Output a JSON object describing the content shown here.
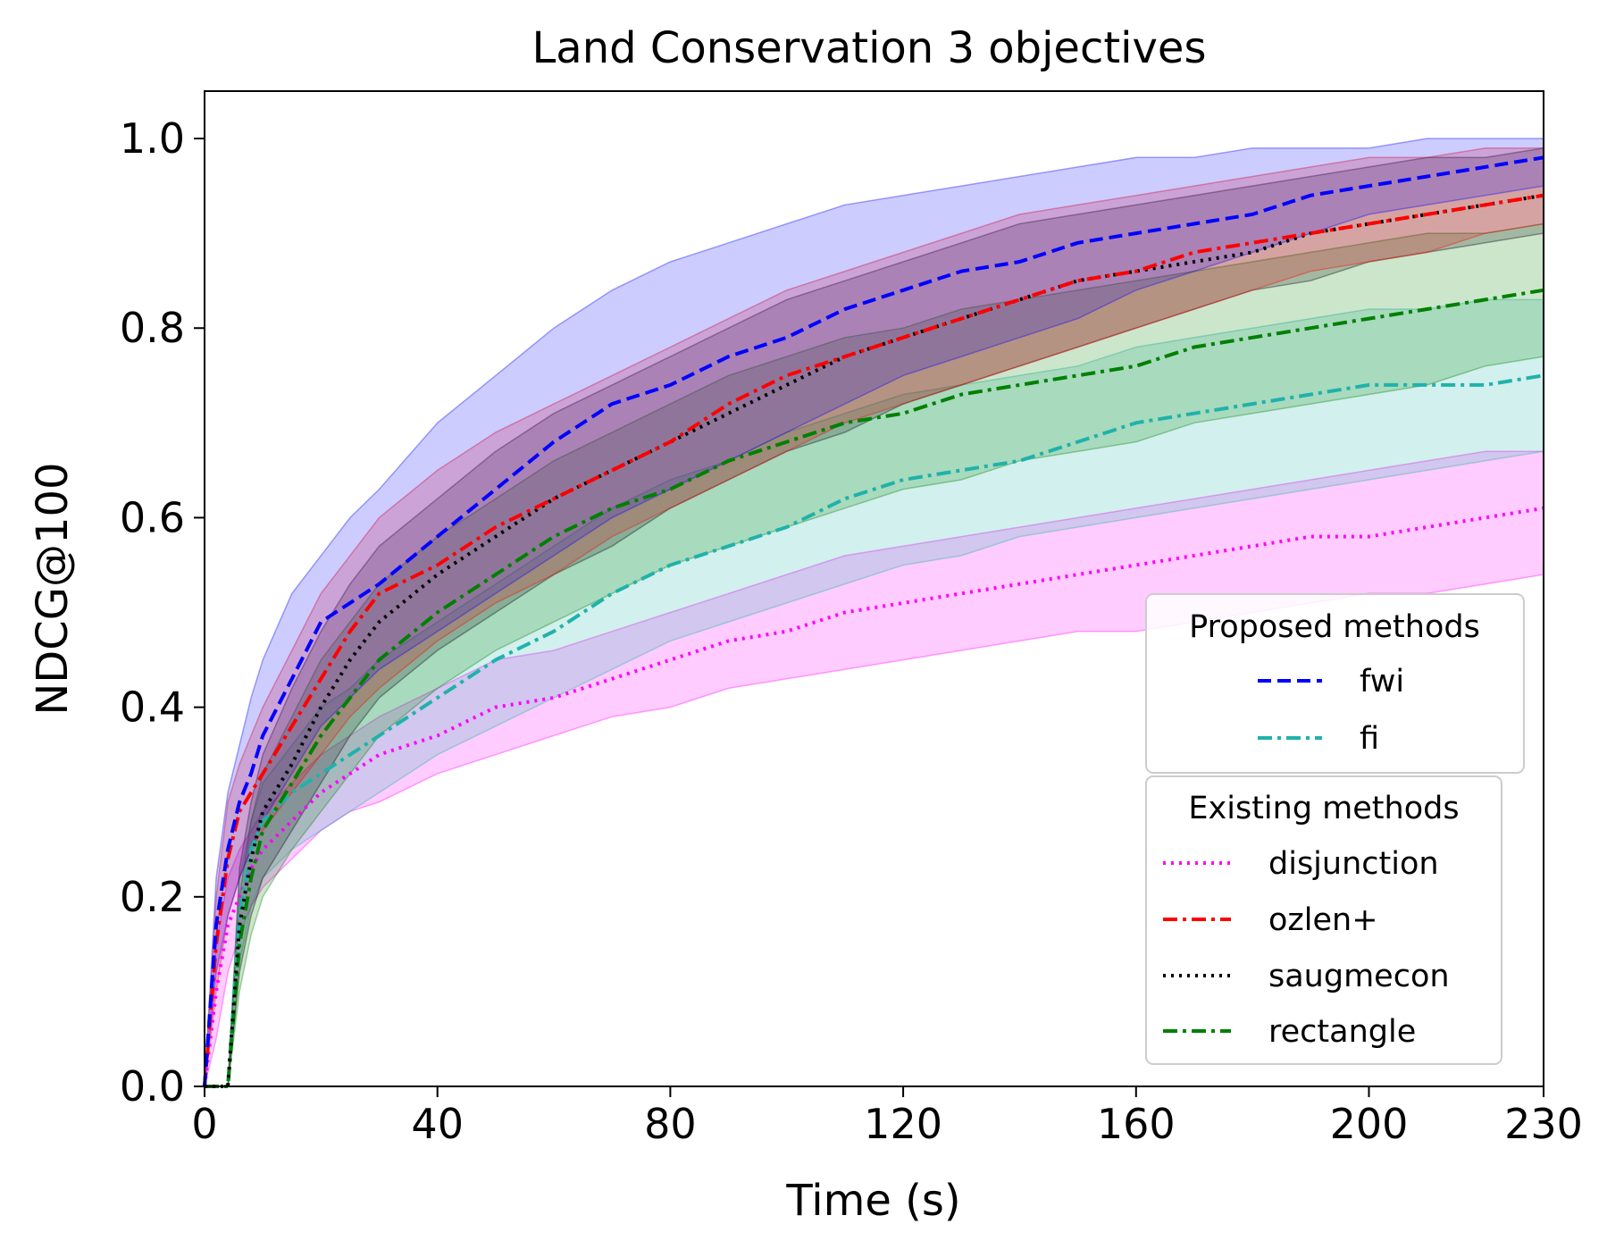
{
  "chart_data": {
    "type": "line",
    "title": "Land Conservation 3 objectives",
    "xlabel": "Time (s)",
    "ylabel": "NDCG@100",
    "xlim": [
      0,
      230
    ],
    "ylim": [
      0,
      1.05
    ],
    "xticks": [
      0,
      40,
      80,
      120,
      160,
      200,
      230
    ],
    "yticks": [
      0.0,
      0.2,
      0.4,
      0.6,
      0.8,
      1.0
    ],
    "xtick_labels": [
      "0",
      "40",
      "80",
      "120",
      "160",
      "200",
      "230"
    ],
    "ytick_labels": [
      "0.0",
      "0.2",
      "0.4",
      "0.6",
      "0.8",
      "1.0"
    ],
    "grid": false,
    "x": [
      0,
      2,
      4,
      6,
      8,
      10,
      15,
      20,
      25,
      30,
      40,
      50,
      60,
      70,
      80,
      90,
      100,
      110,
      120,
      130,
      140,
      150,
      160,
      170,
      180,
      190,
      200,
      210,
      220,
      230
    ],
    "series": [
      {
        "name": "disjunction",
        "group": "existing",
        "color": "#ff00ff",
        "style": "dotted",
        "mean": [
          0.0,
          0.1,
          0.17,
          0.2,
          0.23,
          0.25,
          0.28,
          0.31,
          0.33,
          0.35,
          0.37,
          0.4,
          0.41,
          0.43,
          0.45,
          0.47,
          0.48,
          0.5,
          0.51,
          0.52,
          0.53,
          0.54,
          0.55,
          0.56,
          0.57,
          0.58,
          0.58,
          0.59,
          0.6,
          0.61
        ],
        "lower": [
          0.0,
          0.05,
          0.12,
          0.16,
          0.19,
          0.21,
          0.24,
          0.27,
          0.29,
          0.3,
          0.33,
          0.35,
          0.37,
          0.39,
          0.4,
          0.42,
          0.43,
          0.44,
          0.45,
          0.46,
          0.47,
          0.48,
          0.48,
          0.49,
          0.5,
          0.51,
          0.52,
          0.52,
          0.53,
          0.54
        ],
        "upper": [
          0.0,
          0.15,
          0.22,
          0.25,
          0.27,
          0.29,
          0.32,
          0.35,
          0.37,
          0.39,
          0.42,
          0.45,
          0.46,
          0.48,
          0.5,
          0.52,
          0.54,
          0.56,
          0.57,
          0.58,
          0.59,
          0.6,
          0.61,
          0.62,
          0.63,
          0.64,
          0.65,
          0.66,
          0.67,
          0.67
        ]
      },
      {
        "name": "ozlen+",
        "group": "existing",
        "color": "#ff0000",
        "style": "dashdot",
        "mean": [
          0.0,
          0.15,
          0.24,
          0.29,
          0.31,
          0.33,
          0.38,
          0.43,
          0.48,
          0.52,
          0.55,
          0.59,
          0.62,
          0.65,
          0.68,
          0.72,
          0.75,
          0.77,
          0.79,
          0.81,
          0.83,
          0.85,
          0.86,
          0.88,
          0.89,
          0.9,
          0.91,
          0.92,
          0.93,
          0.94
        ],
        "lower": [
          0.0,
          0.1,
          0.18,
          0.22,
          0.25,
          0.27,
          0.31,
          0.35,
          0.39,
          0.42,
          0.47,
          0.51,
          0.54,
          0.58,
          0.61,
          0.64,
          0.67,
          0.7,
          0.72,
          0.74,
          0.76,
          0.78,
          0.8,
          0.82,
          0.84,
          0.86,
          0.87,
          0.88,
          0.9,
          0.91
        ],
        "upper": [
          0.0,
          0.2,
          0.3,
          0.34,
          0.37,
          0.4,
          0.46,
          0.52,
          0.56,
          0.6,
          0.65,
          0.69,
          0.72,
          0.75,
          0.78,
          0.81,
          0.84,
          0.86,
          0.88,
          0.9,
          0.92,
          0.93,
          0.94,
          0.95,
          0.96,
          0.97,
          0.98,
          0.98,
          0.99,
          0.99
        ]
      },
      {
        "name": "saugmecon",
        "group": "existing",
        "color": "#000000",
        "style": "dotted",
        "mean": [
          0.0,
          0.0,
          0.0,
          0.17,
          0.24,
          0.29,
          0.34,
          0.4,
          0.45,
          0.49,
          0.54,
          0.58,
          0.62,
          0.65,
          0.68,
          0.71,
          0.74,
          0.77,
          0.79,
          0.81,
          0.83,
          0.85,
          0.86,
          0.87,
          0.88,
          0.9,
          0.91,
          0.92,
          0.93,
          0.94
        ],
        "lower": [
          0.0,
          0.0,
          0.0,
          0.12,
          0.18,
          0.22,
          0.27,
          0.32,
          0.37,
          0.41,
          0.46,
          0.5,
          0.54,
          0.57,
          0.61,
          0.64,
          0.67,
          0.69,
          0.72,
          0.74,
          0.76,
          0.78,
          0.8,
          0.82,
          0.84,
          0.85,
          0.87,
          0.88,
          0.89,
          0.9
        ],
        "upper": [
          0.0,
          0.0,
          0.0,
          0.23,
          0.3,
          0.35,
          0.42,
          0.48,
          0.53,
          0.57,
          0.62,
          0.67,
          0.71,
          0.74,
          0.77,
          0.8,
          0.83,
          0.85,
          0.87,
          0.89,
          0.91,
          0.92,
          0.93,
          0.94,
          0.95,
          0.96,
          0.97,
          0.98,
          0.98,
          0.99
        ]
      },
      {
        "name": "rectangle",
        "group": "existing",
        "color": "#008000",
        "style": "dashdot",
        "mean": [
          0.0,
          0.0,
          0.0,
          0.15,
          0.22,
          0.27,
          0.32,
          0.37,
          0.41,
          0.45,
          0.5,
          0.54,
          0.58,
          0.61,
          0.63,
          0.66,
          0.68,
          0.7,
          0.71,
          0.73,
          0.74,
          0.75,
          0.76,
          0.78,
          0.79,
          0.8,
          0.81,
          0.82,
          0.83,
          0.84
        ],
        "lower": [
          0.0,
          0.0,
          0.0,
          0.1,
          0.16,
          0.2,
          0.25,
          0.29,
          0.33,
          0.37,
          0.42,
          0.46,
          0.49,
          0.52,
          0.55,
          0.57,
          0.59,
          0.61,
          0.63,
          0.64,
          0.66,
          0.67,
          0.68,
          0.7,
          0.71,
          0.72,
          0.73,
          0.74,
          0.76,
          0.77
        ],
        "upper": [
          0.0,
          0.0,
          0.0,
          0.2,
          0.28,
          0.33,
          0.39,
          0.45,
          0.49,
          0.53,
          0.58,
          0.62,
          0.66,
          0.69,
          0.72,
          0.75,
          0.77,
          0.79,
          0.8,
          0.82,
          0.83,
          0.84,
          0.85,
          0.86,
          0.87,
          0.88,
          0.89,
          0.9,
          0.9,
          0.91
        ]
      },
      {
        "name": "fwi",
        "group": "proposed",
        "color": "#0000ff",
        "style": "dashed",
        "mean": [
          0.0,
          0.17,
          0.25,
          0.3,
          0.33,
          0.37,
          0.43,
          0.49,
          0.51,
          0.53,
          0.58,
          0.63,
          0.68,
          0.72,
          0.74,
          0.77,
          0.79,
          0.82,
          0.84,
          0.86,
          0.87,
          0.89,
          0.9,
          0.91,
          0.92,
          0.94,
          0.95,
          0.96,
          0.97,
          0.98
        ],
        "lower": [
          0.0,
          0.12,
          0.18,
          0.22,
          0.25,
          0.28,
          0.33,
          0.38,
          0.41,
          0.44,
          0.48,
          0.52,
          0.56,
          0.6,
          0.63,
          0.66,
          0.69,
          0.72,
          0.75,
          0.77,
          0.79,
          0.81,
          0.84,
          0.86,
          0.88,
          0.9,
          0.92,
          0.93,
          0.94,
          0.95
        ],
        "upper": [
          0.0,
          0.22,
          0.31,
          0.36,
          0.41,
          0.45,
          0.52,
          0.56,
          0.6,
          0.63,
          0.7,
          0.75,
          0.8,
          0.84,
          0.87,
          0.89,
          0.91,
          0.93,
          0.94,
          0.95,
          0.96,
          0.97,
          0.98,
          0.98,
          0.99,
          0.99,
          0.99,
          1.0,
          1.0,
          1.0
        ]
      },
      {
        "name": "fi",
        "group": "proposed",
        "color": "#20b2aa",
        "style": "dashdot",
        "mean": [
          0.0,
          0.0,
          0.0,
          0.18,
          0.25,
          0.28,
          0.31,
          0.33,
          0.35,
          0.37,
          0.41,
          0.45,
          0.48,
          0.52,
          0.55,
          0.57,
          0.59,
          0.62,
          0.64,
          0.65,
          0.66,
          0.68,
          0.7,
          0.71,
          0.72,
          0.73,
          0.74,
          0.74,
          0.74,
          0.75
        ],
        "lower": [
          0.0,
          0.0,
          0.0,
          0.13,
          0.19,
          0.22,
          0.25,
          0.27,
          0.29,
          0.31,
          0.35,
          0.38,
          0.41,
          0.44,
          0.47,
          0.49,
          0.51,
          0.53,
          0.55,
          0.56,
          0.58,
          0.59,
          0.6,
          0.61,
          0.62,
          0.63,
          0.64,
          0.65,
          0.66,
          0.67
        ],
        "upper": [
          0.0,
          0.0,
          0.0,
          0.22,
          0.28,
          0.32,
          0.36,
          0.4,
          0.42,
          0.45,
          0.49,
          0.53,
          0.57,
          0.61,
          0.64,
          0.66,
          0.69,
          0.71,
          0.73,
          0.74,
          0.75,
          0.76,
          0.78,
          0.79,
          0.8,
          0.81,
          0.82,
          0.82,
          0.83,
          0.83
        ]
      }
    ],
    "legend": {
      "placement": "lower-right",
      "groups": [
        {
          "title": "Proposed methods",
          "entries": [
            "fwi",
            "fi"
          ]
        },
        {
          "title": "Existing methods",
          "entries": [
            "disjunction",
            "ozlen+",
            "saugmecon",
            "rectangle"
          ]
        }
      ]
    }
  }
}
